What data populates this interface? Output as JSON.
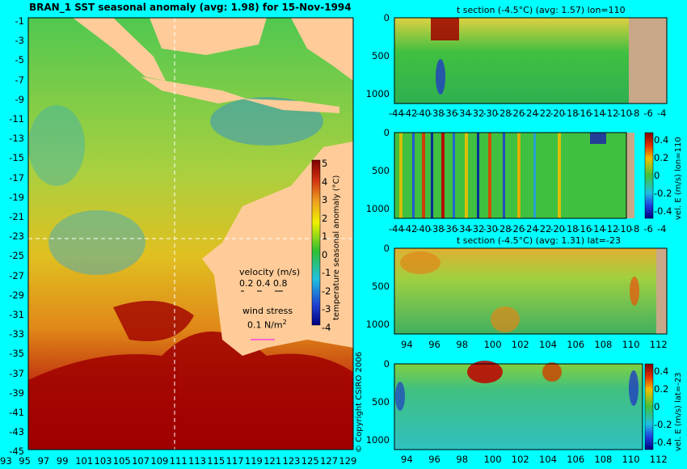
{
  "map": {
    "title": "BRAN_1 SST seasonal anomaly (avg: 1.98) for 15-Nov-1994",
    "lat_labels": [
      "-1",
      "-3",
      "-5",
      "-7",
      "-9",
      "-11",
      "-13",
      "-15",
      "-17",
      "-19",
      "-21",
      "-23",
      "-25",
      "-27",
      "-29",
      "-31",
      "-33",
      "-35",
      "-37",
      "-39",
      "-41",
      "-43",
      "-45"
    ],
    "lon_labels": [
      "93",
      "95",
      "97",
      "99",
      "101",
      "103",
      "105",
      "107",
      "109",
      "111",
      "113",
      "115",
      "117",
      "119",
      "121",
      "123",
      "125",
      "127",
      "129"
    ],
    "velocity_label": "velocity (m/s)",
    "velocity_scale": "0.2 0.4 0.8",
    "wind_label": "wind stress",
    "wind_scale": "0.1 N/m",
    "wind_scale_sup": "2",
    "colorbar_label": "temperature seasonal anomaly (°C)",
    "colorbar_ticks": [
      "5",
      "4",
      "3",
      "2",
      "1",
      "0",
      "-1",
      "-2",
      "-3",
      "-4"
    ],
    "copyright": "© Copyright CSIRO 2006"
  },
  "chart_data": [
    {
      "type": "heatmap",
      "title": "BRAN_1 SST seasonal anomaly (avg: 1.98) for 15-Nov-1994",
      "x_ticks": [
        93,
        95,
        97,
        99,
        101,
        103,
        105,
        107,
        109,
        111,
        113,
        115,
        117,
        119,
        121,
        123,
        125,
        127,
        129
      ],
      "y_ticks": [
        -1,
        -3,
        -5,
        -7,
        -9,
        -11,
        -13,
        -15,
        -17,
        -19,
        -21,
        -23,
        -25,
        -27,
        -29,
        -31,
        -33,
        -35,
        -37,
        -39,
        -41,
        -43,
        -45
      ],
      "colorbar_range": [
        -4,
        5
      ]
    },
    {
      "type": "heatmap",
      "title": "t section (-4.5°C) (avg: 1.57) lon=110",
      "x_ticks": [
        -44,
        -42,
        -40,
        -38,
        -36,
        -34,
        -32,
        -30,
        -28,
        -26,
        -24,
        -22,
        -20,
        -18,
        -16,
        -14,
        -12,
        -10,
        -8,
        -6,
        -4
      ],
      "y_ticks": [
        0,
        500,
        1000
      ]
    },
    {
      "type": "heatmap",
      "title": "",
      "x_ticks": [
        -44,
        -42,
        -40,
        -38,
        -36,
        -34,
        -32,
        -30,
        -28,
        -26,
        -24,
        -22,
        -20,
        -18,
        -16,
        -14,
        -12,
        -10,
        -8,
        -6,
        -4
      ],
      "y_ticks": [
        0,
        500,
        1000
      ],
      "colorbar_label": "vel. E (m/s) lon=110",
      "colorbar_ticks": [
        0.4,
        0.2,
        0,
        -0.2,
        -0.4
      ]
    },
    {
      "type": "heatmap",
      "title": "t section (-4.5°C) (avg: 1.31) lat=-23",
      "x_ticks": [
        94,
        96,
        98,
        100,
        102,
        104,
        106,
        108,
        110,
        112
      ],
      "y_ticks": [
        0,
        500,
        1000
      ]
    },
    {
      "type": "heatmap",
      "title": "",
      "x_ticks": [
        94,
        96,
        98,
        100,
        102,
        104,
        106,
        108,
        110,
        112
      ],
      "y_ticks": [
        0,
        500,
        1000
      ],
      "colorbar_label": "vel. E (m/s) lat=-23",
      "colorbar_ticks": [
        0.4,
        0.2,
        0,
        -0.2,
        -0.4
      ]
    }
  ],
  "panels": {
    "p1": {
      "title": "t section (-4.5°C) (avg: 1.57) lon=110",
      "y_ticks": [
        "0",
        "500",
        "1000"
      ],
      "x_ticks": [
        "-44",
        "-42",
        "-40",
        "-38",
        "-36",
        "-34",
        "-32",
        "-30",
        "-28",
        "-26",
        "-24",
        "-22",
        "-20",
        "-18",
        "-16",
        "-14",
        "-12",
        "-10",
        "-8",
        "-6",
        "-4"
      ]
    },
    "p2": {
      "y_ticks": [
        "0",
        "500",
        "1000"
      ],
      "x_ticks": [
        "-44",
        "-42",
        "-40",
        "-38",
        "-36",
        "-34",
        "-32",
        "-30",
        "-28",
        "-26",
        "-24",
        "-22",
        "-20",
        "-18",
        "-16",
        "-14",
        "-12",
        "-10",
        "-8",
        "-6",
        "-4"
      ],
      "cbar_label": "vel. E (m/s) lon=110",
      "cbar_ticks": [
        "0.4",
        "0.2",
        "0",
        "-0.2",
        "-0.4"
      ]
    },
    "p3": {
      "title": "t section (-4.5°C) (avg: 1.31) lat=-23",
      "y_ticks": [
        "0",
        "500",
        "1000"
      ],
      "x_ticks": [
        "94",
        "96",
        "98",
        "100",
        "102",
        "104",
        "106",
        "108",
        "110",
        "112"
      ]
    },
    "p4": {
      "y_ticks": [
        "0",
        "500",
        "1000"
      ],
      "x_ticks": [
        "94",
        "96",
        "98",
        "100",
        "102",
        "104",
        "106",
        "108",
        "110",
        "112"
      ],
      "cbar_label": "vel. E (m/s) lat=-23",
      "cbar_ticks": [
        "0.4",
        "0.2",
        "0",
        "-0.2",
        "-0.4"
      ]
    }
  },
  "colors": {
    "background": "#00ffff",
    "land": "#ffcc99",
    "section_land": "#c8a888",
    "anomaly_hot": "#a00000",
    "anomaly_warm": "#f0a020",
    "anomaly_mid": "#e8e000",
    "anomaly_neutral": "#40c040",
    "anomaly_cool": "#30a0e0",
    "anomaly_cold": "#1020a0"
  }
}
